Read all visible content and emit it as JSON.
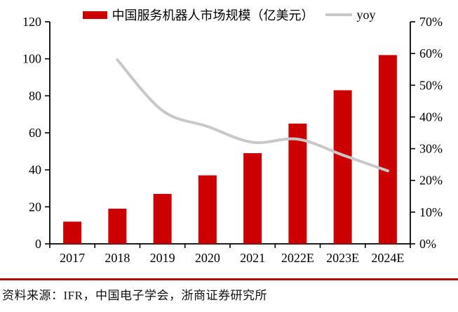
{
  "legend": [
    {
      "label": "中国服务机器人市场规模（亿美元）",
      "type": "bar",
      "color": "#CC0000"
    },
    {
      "label": "yoy",
      "type": "line",
      "color": "#C8C8C8"
    }
  ],
  "source_note": "资料来源：IFR，中国电子学会，浙商证券研究所",
  "colors": {
    "bar": "#CC0000",
    "line": "#C8C8C8",
    "axis": "#000000",
    "divider": "#B00C12"
  },
  "chart_data": {
    "type": "bar",
    "categories": [
      "2017",
      "2018",
      "2019",
      "2020",
      "2021",
      "2022E",
      "2023E",
      "2024E"
    ],
    "series": [
      {
        "name": "中国服务机器人市场规模（亿美元）",
        "type": "bar",
        "axis": "left",
        "color": "#CC0000",
        "values": [
          12,
          19,
          27,
          37,
          49,
          65,
          83,
          102
        ]
      },
      {
        "name": "yoy",
        "type": "line",
        "axis": "right",
        "color": "#C8C8C8",
        "unit": "%",
        "values": [
          null,
          58,
          42,
          37,
          32,
          33,
          28,
          23
        ]
      }
    ],
    "left_axis": {
      "min": 0,
      "max": 120,
      "step": 20,
      "tick_labels": [
        "0",
        "20",
        "40",
        "60",
        "80",
        "100",
        "120"
      ]
    },
    "right_axis": {
      "min": 0,
      "max": 70,
      "step": 10,
      "tick_labels": [
        "0%",
        "10%",
        "20%",
        "30%",
        "40%",
        "50%",
        "60%",
        "70%"
      ]
    },
    "grid": false,
    "legend_position": "top",
    "title": ""
  }
}
